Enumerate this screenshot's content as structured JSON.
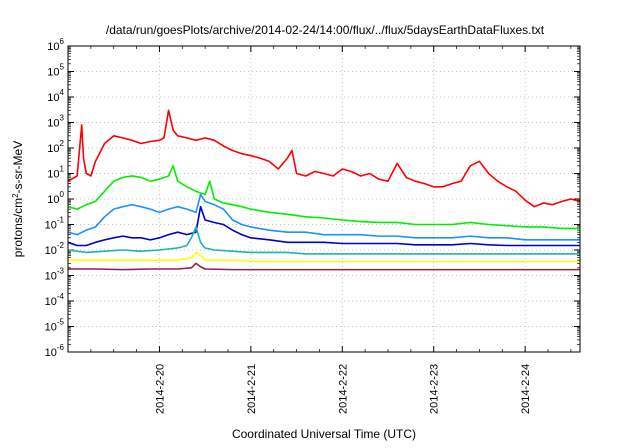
{
  "chart_data": {
    "type": "line",
    "title": "/data/run/goesPlots/archive/2014-02-24/14:00/flux/../flux/5daysEarthDataFluxes.txt",
    "xlabel": "Coordinated Universal Time (UTC)",
    "ylabel": {
      "prefix": "protons/cm",
      "sup": "2",
      "suffix": "-s-sr-MeV"
    },
    "yscale": "log",
    "ylim": [
      1e-06,
      1000000.0
    ],
    "xlim": [
      0.0,
      5.6
    ],
    "grid": true,
    "x_ticks": [
      {
        "x": 1,
        "label": "2014-2-20"
      },
      {
        "x": 2,
        "label": "2014-2-21"
      },
      {
        "x": 3,
        "label": "2014-2-22"
      },
      {
        "x": 4,
        "label": "2014-2-23"
      },
      {
        "x": 5,
        "label": "2014-2-24"
      }
    ],
    "y_ticks": [
      {
        "exp": 6,
        "label": "10",
        "sup": "6"
      },
      {
        "exp": 5,
        "label": "10",
        "sup": "5"
      },
      {
        "exp": 4,
        "label": "10",
        "sup": "4"
      },
      {
        "exp": 3,
        "label": "10",
        "sup": "3"
      },
      {
        "exp": 2,
        "label": "10",
        "sup": "2"
      },
      {
        "exp": 1,
        "label": "10",
        "sup": "1"
      },
      {
        "exp": 0,
        "label": "10",
        "sup": "0"
      },
      {
        "exp": -1,
        "label": "10",
        "sup": "-1"
      },
      {
        "exp": -2,
        "label": "10",
        "sup": "-2"
      },
      {
        "exp": -3,
        "label": "10",
        "sup": "-3"
      },
      {
        "exp": -4,
        "label": "10",
        "sup": "-4"
      },
      {
        "exp": -5,
        "label": "10",
        "sup": "-5"
      },
      {
        "exp": -6,
        "label": "10",
        "sup": "-6"
      }
    ],
    "series": [
      {
        "color": "#ff0000",
        "x": [
          0.0,
          0.1,
          0.15,
          0.17,
          0.2,
          0.25,
          0.3,
          0.4,
          0.5,
          0.6,
          0.7,
          0.8,
          0.9,
          1.0,
          1.05,
          1.1,
          1.15,
          1.2,
          1.3,
          1.4,
          1.5,
          1.6,
          1.7,
          1.8,
          1.9,
          2.0,
          2.1,
          2.2,
          2.3,
          2.4,
          2.45,
          2.5,
          2.6,
          2.7,
          2.8,
          2.9,
          3.0,
          3.1,
          3.2,
          3.3,
          3.4,
          3.5,
          3.6,
          3.7,
          3.8,
          3.9,
          4.0,
          4.1,
          4.2,
          4.3,
          4.4,
          4.5,
          4.6,
          4.7,
          4.8,
          4.9,
          5.0,
          5.1,
          5.2,
          5.3,
          5.4,
          5.5,
          5.6
        ],
        "y": [
          5,
          8,
          800,
          40,
          10,
          8,
          30,
          150,
          300,
          250,
          200,
          150,
          180,
          200,
          250,
          3000,
          500,
          300,
          250,
          200,
          250,
          200,
          120,
          80,
          60,
          50,
          40,
          30,
          15,
          40,
          80,
          10,
          8,
          12,
          10,
          8,
          15,
          12,
          8,
          10,
          6,
          5,
          25,
          7,
          5,
          4,
          3,
          3,
          4,
          5,
          20,
          30,
          10,
          5,
          3,
          2,
          0.9,
          0.5,
          0.7,
          0.6,
          0.8,
          1.0,
          0.8
        ]
      },
      {
        "color": "#00ee00",
        "x": [
          0.0,
          0.1,
          0.2,
          0.3,
          0.4,
          0.5,
          0.6,
          0.7,
          0.8,
          0.9,
          1.0,
          1.1,
          1.15,
          1.2,
          1.3,
          1.4,
          1.5,
          1.55,
          1.6,
          1.7,
          1.8,
          1.9,
          2.0,
          2.2,
          2.4,
          2.6,
          2.8,
          3.0,
          3.2,
          3.4,
          3.6,
          3.8,
          4.0,
          4.2,
          4.4,
          4.6,
          4.8,
          5.0,
          5.2,
          5.4,
          5.6
        ],
        "y": [
          0.5,
          0.4,
          0.6,
          0.8,
          2,
          5,
          7,
          8,
          7,
          5,
          6,
          8,
          20,
          5,
          3,
          2,
          1.5,
          5,
          1,
          0.7,
          0.6,
          0.5,
          0.4,
          0.3,
          0.25,
          0.2,
          0.18,
          0.15,
          0.13,
          0.12,
          0.12,
          0.1,
          0.1,
          0.1,
          0.12,
          0.1,
          0.09,
          0.08,
          0.08,
          0.07,
          0.07
        ]
      },
      {
        "color": "#1e90ff",
        "x": [
          0.0,
          0.1,
          0.2,
          0.3,
          0.4,
          0.5,
          0.6,
          0.7,
          0.8,
          0.9,
          1.0,
          1.1,
          1.2,
          1.3,
          1.4,
          1.45,
          1.5,
          1.6,
          1.7,
          1.8,
          1.9,
          2.0,
          2.2,
          2.4,
          2.6,
          2.8,
          3.0,
          3.2,
          3.4,
          3.6,
          3.8,
          4.0,
          4.2,
          4.4,
          4.6,
          4.8,
          5.0,
          5.2,
          5.4,
          5.6
        ],
        "y": [
          0.05,
          0.04,
          0.06,
          0.08,
          0.2,
          0.4,
          0.5,
          0.6,
          0.5,
          0.4,
          0.3,
          0.4,
          0.5,
          0.4,
          0.3,
          1.5,
          0.8,
          0.6,
          0.4,
          0.15,
          0.1,
          0.08,
          0.06,
          0.05,
          0.05,
          0.04,
          0.04,
          0.04,
          0.035,
          0.035,
          0.03,
          0.03,
          0.03,
          0.035,
          0.03,
          0.03,
          0.025,
          0.025,
          0.025,
          0.025
        ]
      },
      {
        "color": "#0000cd",
        "x": [
          0.0,
          0.1,
          0.2,
          0.3,
          0.4,
          0.5,
          0.6,
          0.7,
          0.8,
          0.9,
          1.0,
          1.1,
          1.2,
          1.3,
          1.4,
          1.45,
          1.5,
          1.6,
          1.7,
          1.8,
          1.9,
          2.0,
          2.2,
          2.4,
          2.6,
          2.8,
          3.0,
          3.2,
          3.4,
          3.6,
          3.8,
          4.0,
          4.2,
          4.4,
          4.6,
          4.8,
          5.0,
          5.2,
          5.4,
          5.6
        ],
        "y": [
          0.02,
          0.015,
          0.015,
          0.02,
          0.025,
          0.03,
          0.035,
          0.03,
          0.03,
          0.025,
          0.03,
          0.04,
          0.05,
          0.04,
          0.05,
          0.5,
          0.15,
          0.12,
          0.1,
          0.06,
          0.04,
          0.03,
          0.025,
          0.02,
          0.02,
          0.02,
          0.018,
          0.018,
          0.018,
          0.018,
          0.016,
          0.016,
          0.016,
          0.018,
          0.016,
          0.015,
          0.015,
          0.015,
          0.015,
          0.015
        ]
      },
      {
        "color": "#20b2aa",
        "x": [
          0.0,
          0.2,
          0.4,
          0.6,
          0.8,
          1.0,
          1.2,
          1.3,
          1.35,
          1.4,
          1.45,
          1.5,
          1.6,
          1.8,
          2.0,
          2.2,
          2.4,
          2.6,
          2.8,
          3.0,
          3.2,
          3.4,
          3.6,
          3.8,
          4.0,
          4.2,
          4.4,
          4.6,
          4.8,
          5.0,
          5.2,
          5.4,
          5.6
        ],
        "y": [
          0.01,
          0.008,
          0.009,
          0.01,
          0.009,
          0.01,
          0.012,
          0.015,
          0.03,
          0.08,
          0.02,
          0.012,
          0.01,
          0.009,
          0.008,
          0.008,
          0.008,
          0.007,
          0.007,
          0.007,
          0.007,
          0.007,
          0.007,
          0.007,
          0.007,
          0.007,
          0.007,
          0.007,
          0.007,
          0.007,
          0.007,
          0.007,
          0.007
        ]
      },
      {
        "color": "#ffff00",
        "x": [
          0.0,
          0.3,
          0.6,
          0.9,
          1.2,
          1.35,
          1.4,
          1.45,
          1.5,
          1.8,
          2.1,
          2.4,
          2.7,
          3.0,
          3.3,
          3.6,
          3.9,
          4.2,
          4.5,
          4.8,
          5.1,
          5.4,
          5.6
        ],
        "y": [
          0.004,
          0.004,
          0.004,
          0.004,
          0.004,
          0.005,
          0.008,
          0.006,
          0.004,
          0.004,
          0.0035,
          0.0035,
          0.0035,
          0.0035,
          0.0035,
          0.0035,
          0.0035,
          0.0035,
          0.0035,
          0.0035,
          0.0035,
          0.0035,
          0.0035
        ]
      },
      {
        "color": "#8b2252",
        "x": [
          0.0,
          0.3,
          0.6,
          0.9,
          1.2,
          1.35,
          1.4,
          1.45,
          1.5,
          1.8,
          2.1,
          2.4,
          2.7,
          3.0,
          3.3,
          3.6,
          3.9,
          4.2,
          4.5,
          4.8,
          5.1,
          5.4,
          5.6
        ],
        "y": [
          0.0018,
          0.0018,
          0.0017,
          0.0018,
          0.0018,
          0.002,
          0.003,
          0.0022,
          0.0018,
          0.0017,
          0.0017,
          0.0017,
          0.0017,
          0.0017,
          0.0017,
          0.0017,
          0.0017,
          0.0017,
          0.0017,
          0.0017,
          0.0017,
          0.0017,
          0.0017
        ]
      }
    ]
  }
}
